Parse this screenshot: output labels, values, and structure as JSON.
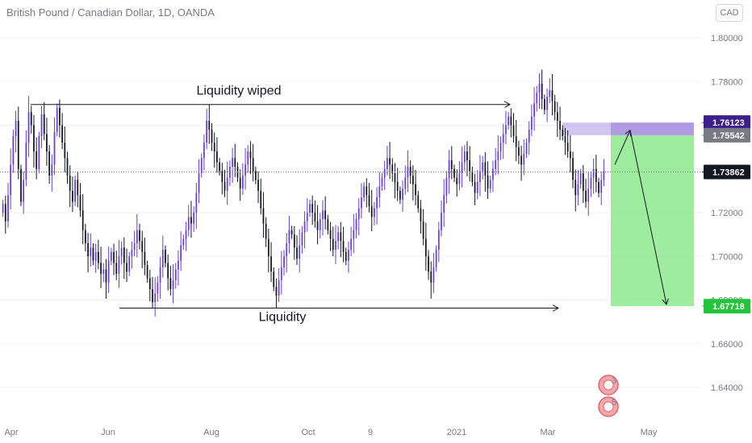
{
  "header": {
    "title": "British Pound / Canadian Dollar, 1D, OANDA"
  },
  "currency_button": "CAD",
  "colors": {
    "up": "#6a3fd0",
    "down": "#131722",
    "entry_zone": "#9b7fdc",
    "target_zone": "#7de57d",
    "tag_entry_top": "#3d1f8c",
    "tag_entry_bottom": "#787b86",
    "tag_current": "#131722",
    "tag_target": "#22c53a"
  },
  "chart_data": {
    "type": "candlestick",
    "title": "British Pound / Canadian Dollar, 1D, OANDA",
    "ylim": [
      1.63,
      1.81
    ],
    "y_ticks": [
      "1.80000",
      "1.78000",
      "1.76000",
      "1.74000",
      "1.72000",
      "1.70000",
      "1.68000",
      "1.66000",
      "1.64000"
    ],
    "x_ticks": [
      "Apr",
      "Jun",
      "Aug",
      "Oct",
      "9",
      "2021",
      "Mar",
      "May"
    ],
    "price_tags": [
      {
        "label": "1.76123",
        "value": 1.76123,
        "role": "entry-top"
      },
      {
        "label": "1.75542",
        "value": 1.75542,
        "role": "entry-bottom"
      },
      {
        "label": "1.73862",
        "value": 1.73862,
        "role": "current"
      },
      {
        "label": "1.67718",
        "value": 1.67718,
        "role": "target"
      }
    ],
    "annotations": [
      {
        "text": "Liquidity wiped",
        "level": 1.7695
      },
      {
        "text": "Liquidity",
        "level": 1.6763
      }
    ],
    "badges": [
      "3",
      "5"
    ],
    "trajectory": [
      {
        "date_index": 252,
        "price": 1.742
      },
      {
        "date_index": 255,
        "price": 1.7577
      },
      {
        "date_index": 274,
        "price": 1.678
      }
    ],
    "closes": [
      1.724,
      1.716,
      1.728,
      1.742,
      1.755,
      1.762,
      1.74,
      1.725,
      1.735,
      1.752,
      1.766,
      1.76,
      1.748,
      1.74,
      1.755,
      1.765,
      1.756,
      1.748,
      1.737,
      1.742,
      1.757,
      1.768,
      1.76,
      1.752,
      1.745,
      1.737,
      1.73,
      1.725,
      1.735,
      1.728,
      1.721,
      1.712,
      1.706,
      1.7,
      1.704,
      1.698,
      1.702,
      1.697,
      1.692,
      1.694,
      1.688,
      1.698,
      1.702,
      1.697,
      1.692,
      1.7,
      1.704,
      1.697,
      1.693,
      1.7,
      1.703,
      1.706,
      1.712,
      1.707,
      1.702,
      1.696,
      1.69,
      1.685,
      1.679,
      1.683,
      1.688,
      1.695,
      1.703,
      1.697,
      1.69,
      1.685,
      1.689,
      1.694,
      1.698,
      1.705,
      1.708,
      1.712,
      1.718,
      1.715,
      1.72,
      1.729,
      1.738,
      1.745,
      1.752,
      1.762,
      1.758,
      1.752,
      1.748,
      1.743,
      1.739,
      1.734,
      1.73,
      1.736,
      1.741,
      1.745,
      1.741,
      1.736,
      1.731,
      1.737,
      1.742,
      1.748,
      1.745,
      1.739,
      1.735,
      1.73,
      1.722,
      1.715,
      1.708,
      1.7,
      1.693,
      1.686,
      1.682,
      1.689,
      1.695,
      1.7,
      1.706,
      1.712,
      1.71,
      1.704,
      1.699,
      1.705,
      1.711,
      1.716,
      1.72,
      1.724,
      1.72,
      1.716,
      1.712,
      1.717,
      1.721,
      1.717,
      1.712,
      1.708,
      1.703,
      1.707,
      1.711,
      1.707,
      1.702,
      1.698,
      1.703,
      1.708,
      1.712,
      1.717,
      1.722,
      1.727,
      1.732,
      1.728,
      1.723,
      1.718,
      1.722,
      1.727,
      1.732,
      1.736,
      1.74,
      1.745,
      1.742,
      1.738,
      1.734,
      1.73,
      1.726,
      1.731,
      1.736,
      1.741,
      1.737,
      1.733,
      1.728,
      1.722,
      1.716,
      1.708,
      1.7,
      1.693,
      1.688,
      1.695,
      1.703,
      1.712,
      1.72,
      1.728,
      1.736,
      1.744,
      1.74,
      1.736,
      1.733,
      1.738,
      1.743,
      1.748,
      1.744,
      1.739,
      1.734,
      1.729,
      1.734,
      1.739,
      1.743,
      1.737,
      1.731,
      1.735,
      1.74,
      1.744,
      1.748,
      1.752,
      1.756,
      1.76,
      1.764,
      1.76,
      1.755,
      1.75,
      1.746,
      1.742,
      1.747,
      1.752,
      1.758,
      1.764,
      1.77,
      1.775,
      1.779,
      1.772,
      1.767,
      1.773,
      1.776,
      1.771,
      1.766,
      1.762,
      1.758,
      1.755,
      1.752,
      1.748,
      1.745,
      1.735,
      1.728,
      1.733,
      1.738,
      1.73,
      1.725,
      1.731,
      1.736,
      1.74,
      1.734,
      1.729,
      1.735,
      1.739
    ]
  }
}
